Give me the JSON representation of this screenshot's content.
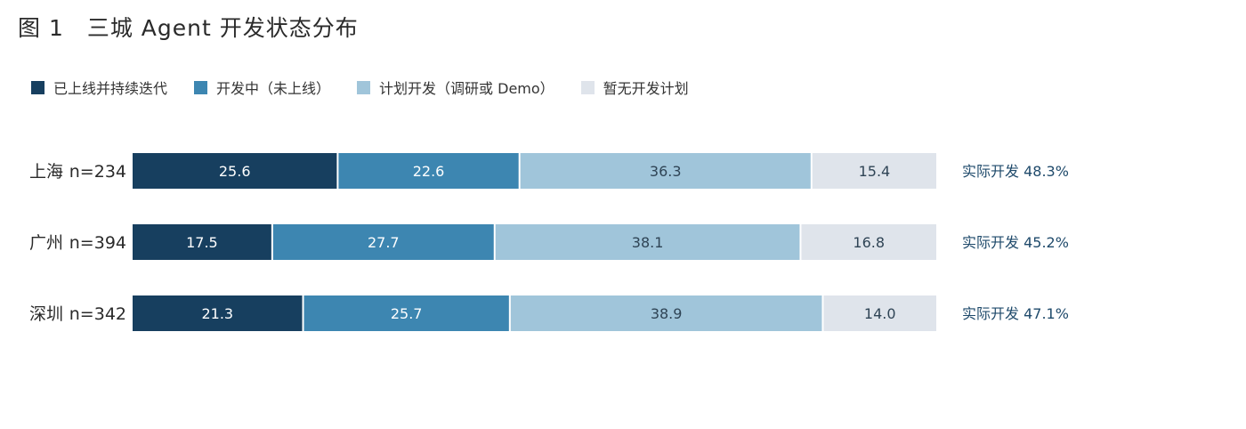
{
  "title": "图 1　三城 Agent 开发状态分布",
  "colors": {
    "series": [
      "#173f5f",
      "#3d86b1",
      "#a0c5da",
      "#dfe4eb"
    ],
    "label_text": [
      "#ffffff",
      "#ffffff",
      "#2f4455",
      "#2f4455"
    ],
    "summary_text": "#1f4a6b"
  },
  "chart_data": {
    "type": "bar",
    "orientation": "horizontal",
    "stacked": true,
    "title": "图 1　三城 Agent 开发状态分布",
    "legend_position": "top-left",
    "grid": false,
    "xlim": [
      0,
      100
    ],
    "categories": [
      "上海",
      "广州",
      "深圳"
    ],
    "sample_sizes": [
      "n=234",
      "n=394",
      "n=342"
    ],
    "series": [
      {
        "name": "已上线并持续迭代",
        "values": [
          25.6,
          17.5,
          21.3
        ]
      },
      {
        "name": "开发中（未上线）",
        "values": [
          22.6,
          27.7,
          25.7
        ]
      },
      {
        "name": "计划开发（调研或 Demo）",
        "values": [
          36.3,
          38.1,
          38.9
        ]
      },
      {
        "name": "暂无开发计划",
        "values": [
          15.4,
          16.8,
          14.0
        ]
      }
    ],
    "value_labels": [
      [
        "25.6",
        "22.6",
        "36.3",
        "15.4"
      ],
      [
        "17.5",
        "27.7",
        "38.1",
        "16.8"
      ],
      [
        "21.3",
        "25.7",
        "38.9",
        "14.0"
      ]
    ],
    "annotations": [
      "实际开发 48.3%",
      "实际开发 45.2%",
      "实际开发 47.1%"
    ]
  }
}
